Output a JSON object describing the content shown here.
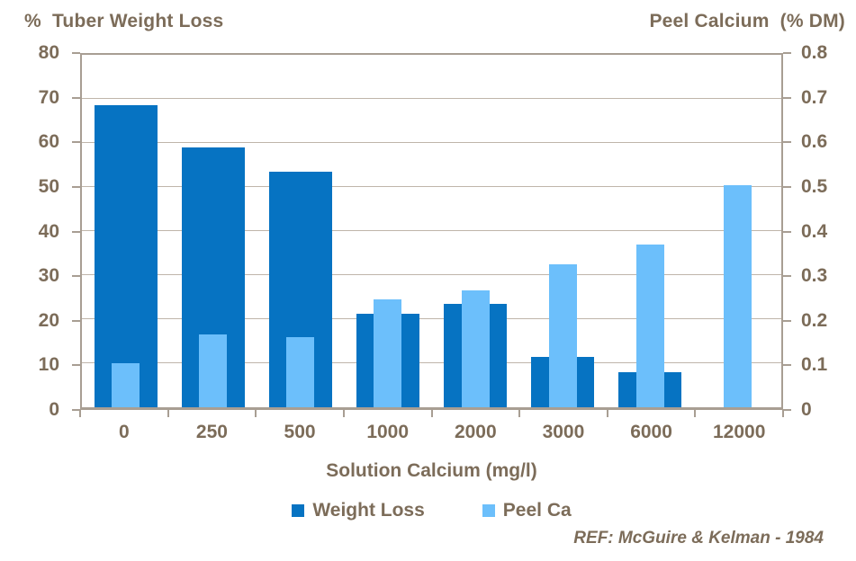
{
  "titles": {
    "left": "%  Tuber Weight Loss",
    "right": "Peel Calcium  (% DM)"
  },
  "footer": {
    "ref": "REF: McGuire & Kelman - 1984"
  },
  "colors": {
    "weight_loss": "#0673c2",
    "peel_ca": "#6cbffb",
    "axis": "#a89e93",
    "grid": "#bfb5aa",
    "text": "#7c6c59"
  },
  "chart_data": {
    "type": "bar",
    "title_left": "% Tuber Weight Loss",
    "title_right": "Peel Calcium (% DM)",
    "xlabel": "Solution Calcium (mg/l)",
    "categories": [
      "0",
      "250",
      "500",
      "1000",
      "2000",
      "3000",
      "6000",
      "12000"
    ],
    "series": [
      {
        "name": "Weight Loss",
        "axis": "left",
        "color": "#0673c2",
        "values": [
          68.5,
          59,
          53.5,
          21.3,
          23.4,
          11.4,
          7.9,
          null
        ]
      },
      {
        "name": "Peel Ca",
        "axis": "right",
        "color": "#6cbffb",
        "values": [
          0.1,
          0.165,
          0.16,
          0.245,
          0.265,
          0.325,
          0.37,
          0.505
        ]
      }
    ],
    "left_axis": {
      "min": 0,
      "max": 80,
      "ticks": [
        "80",
        "70",
        "60",
        "50",
        "40",
        "30",
        "20",
        "10",
        "0"
      ]
    },
    "right_axis": {
      "min": 0,
      "max": 0.8,
      "ticks": [
        "0.8",
        "0.7",
        "0.6",
        "0.5",
        "0.4",
        "0.3",
        "0.2",
        "0.1",
        "0"
      ]
    },
    "grid": true,
    "legend_position": "bottom",
    "legend": [
      {
        "label": "Weight Loss",
        "color": "#0673c2"
      },
      {
        "label": "Peel Ca",
        "color": "#6cbffb"
      }
    ],
    "annotation": "REF: McGuire & Kelman - 1984"
  }
}
